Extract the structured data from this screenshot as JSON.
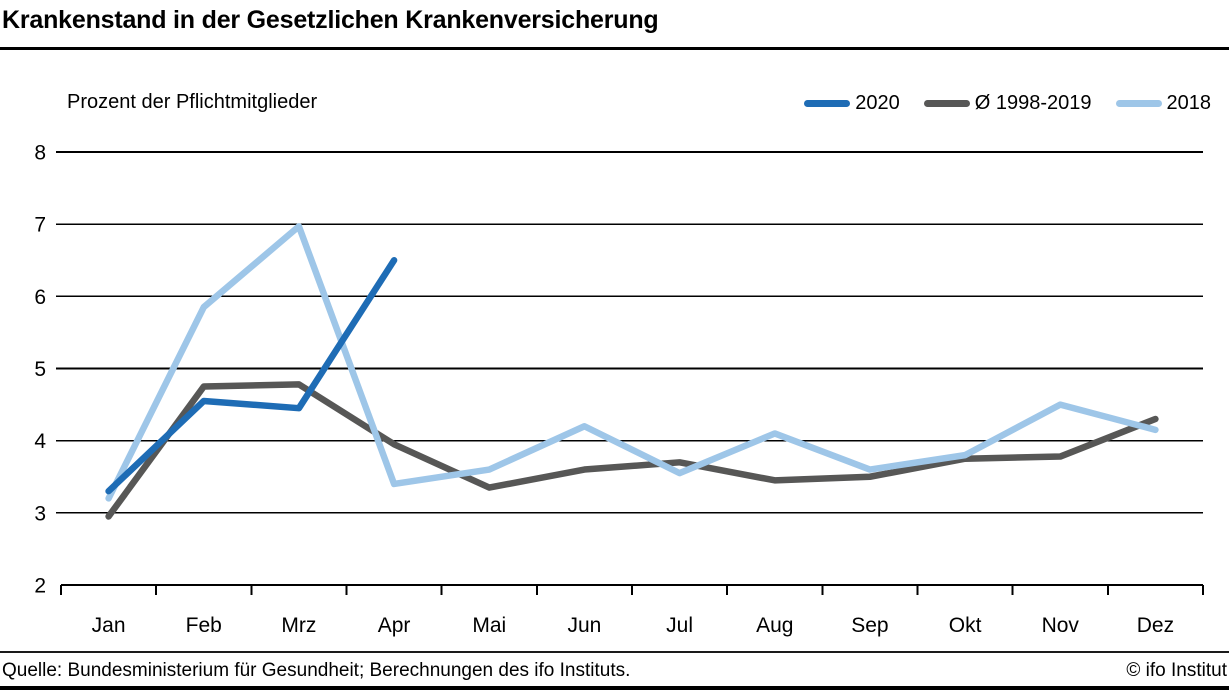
{
  "header": {
    "title": "Krankenstand in der Gesetzlichen Krankenversicherung"
  },
  "chart_data": {
    "type": "line",
    "title": "Krankenstand in der Gesetzlichen Krankenversicherung",
    "unit_label": "Prozent der Pflichtmitglieder",
    "categories": [
      "Jan",
      "Feb",
      "Mrz",
      "Apr",
      "Mai",
      "Jun",
      "Jul",
      "Aug",
      "Sep",
      "Okt",
      "Nov",
      "Dez"
    ],
    "ylabel": "Prozent der Pflichtmitglieder",
    "xlabel": "",
    "ylim": [
      2,
      8
    ],
    "yticks": [
      2,
      3,
      4,
      5,
      6,
      7,
      8
    ],
    "grid": "horizontal",
    "legend_position": "top-right",
    "series": [
      {
        "name": "2020",
        "color": "#1e6cb5",
        "values": [
          3.3,
          4.55,
          4.45,
          6.5,
          null,
          null,
          null,
          null,
          null,
          null,
          null,
          null
        ]
      },
      {
        "name": "Ø 1998-2019",
        "color": "#575756",
        "values": [
          2.95,
          4.75,
          4.78,
          3.95,
          3.35,
          3.6,
          3.7,
          3.45,
          3.5,
          3.75,
          3.78,
          4.3
        ]
      },
      {
        "name": "2018",
        "color": "#9ec6e8",
        "values": [
          3.2,
          5.85,
          6.97,
          3.4,
          3.6,
          4.2,
          3.55,
          4.1,
          3.6,
          3.8,
          4.5,
          4.15
        ]
      }
    ]
  },
  "footer": {
    "source": "Quelle: Bundesministerium für Gesundheit; Berechnungen des ifo Instituts.",
    "credit": "© ifo Institut"
  }
}
